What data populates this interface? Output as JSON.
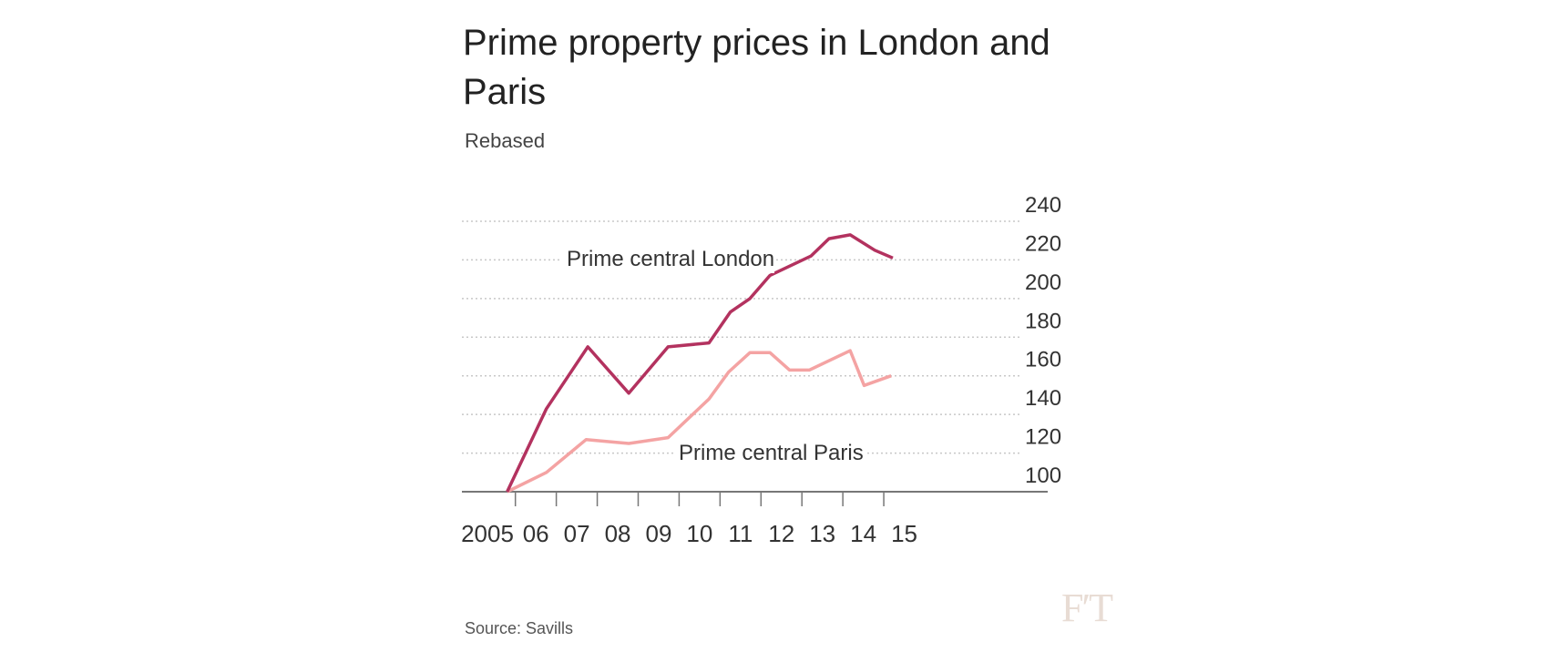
{
  "chart_data": {
    "type": "line",
    "title": "Prime property prices in London and Paris",
    "subtitle": "Rebased",
    "source": "Source: Savills",
    "logo": "FT",
    "xlabel": "",
    "ylabel": "",
    "ylim": [
      100,
      240
    ],
    "yticks": [
      100,
      120,
      140,
      160,
      180,
      200,
      220,
      240
    ],
    "xlim": [
      2005,
      2016
    ],
    "xtick_labels": [
      {
        "year": 2005,
        "label": "2005"
      },
      {
        "year": 2006,
        "label": "06"
      },
      {
        "year": 2007,
        "label": "07"
      },
      {
        "year": 2008,
        "label": "08"
      },
      {
        "year": 2009,
        "label": "09"
      },
      {
        "year": 2010,
        "label": "10"
      },
      {
        "year": 2011,
        "label": "11"
      },
      {
        "year": 2012,
        "label": "12"
      },
      {
        "year": 2013,
        "label": "13"
      },
      {
        "year": 2014,
        "label": "14"
      },
      {
        "year": 2015,
        "label": "15"
      }
    ],
    "grid": true,
    "y_axis_position": "right",
    "series": [
      {
        "name": "Prime central London",
        "color": "#b3325f",
        "x": [
          2005.8,
          2006.76,
          2007.77,
          2008.77,
          2009.73,
          2010.73,
          2011.25,
          2011.73,
          2012.22,
          2013.22,
          2013.66,
          2014.18,
          2014.78,
          2015.22
        ],
        "y": [
          100,
          143,
          175,
          151,
          175,
          177,
          193,
          200,
          212,
          222,
          231,
          233,
          225,
          221
        ]
      },
      {
        "name": "Prime central Paris",
        "color": "#f4a3a3",
        "x": [
          2005.8,
          2006.76,
          2007.73,
          2008.77,
          2009.73,
          2010.73,
          2011.21,
          2011.73,
          2012.22,
          2012.7,
          2013.18,
          2014.18,
          2014.52,
          2015.18
        ],
        "y": [
          100,
          110,
          127,
          125,
          128,
          148,
          162,
          172,
          172,
          163,
          163,
          173,
          155,
          160
        ]
      }
    ]
  }
}
